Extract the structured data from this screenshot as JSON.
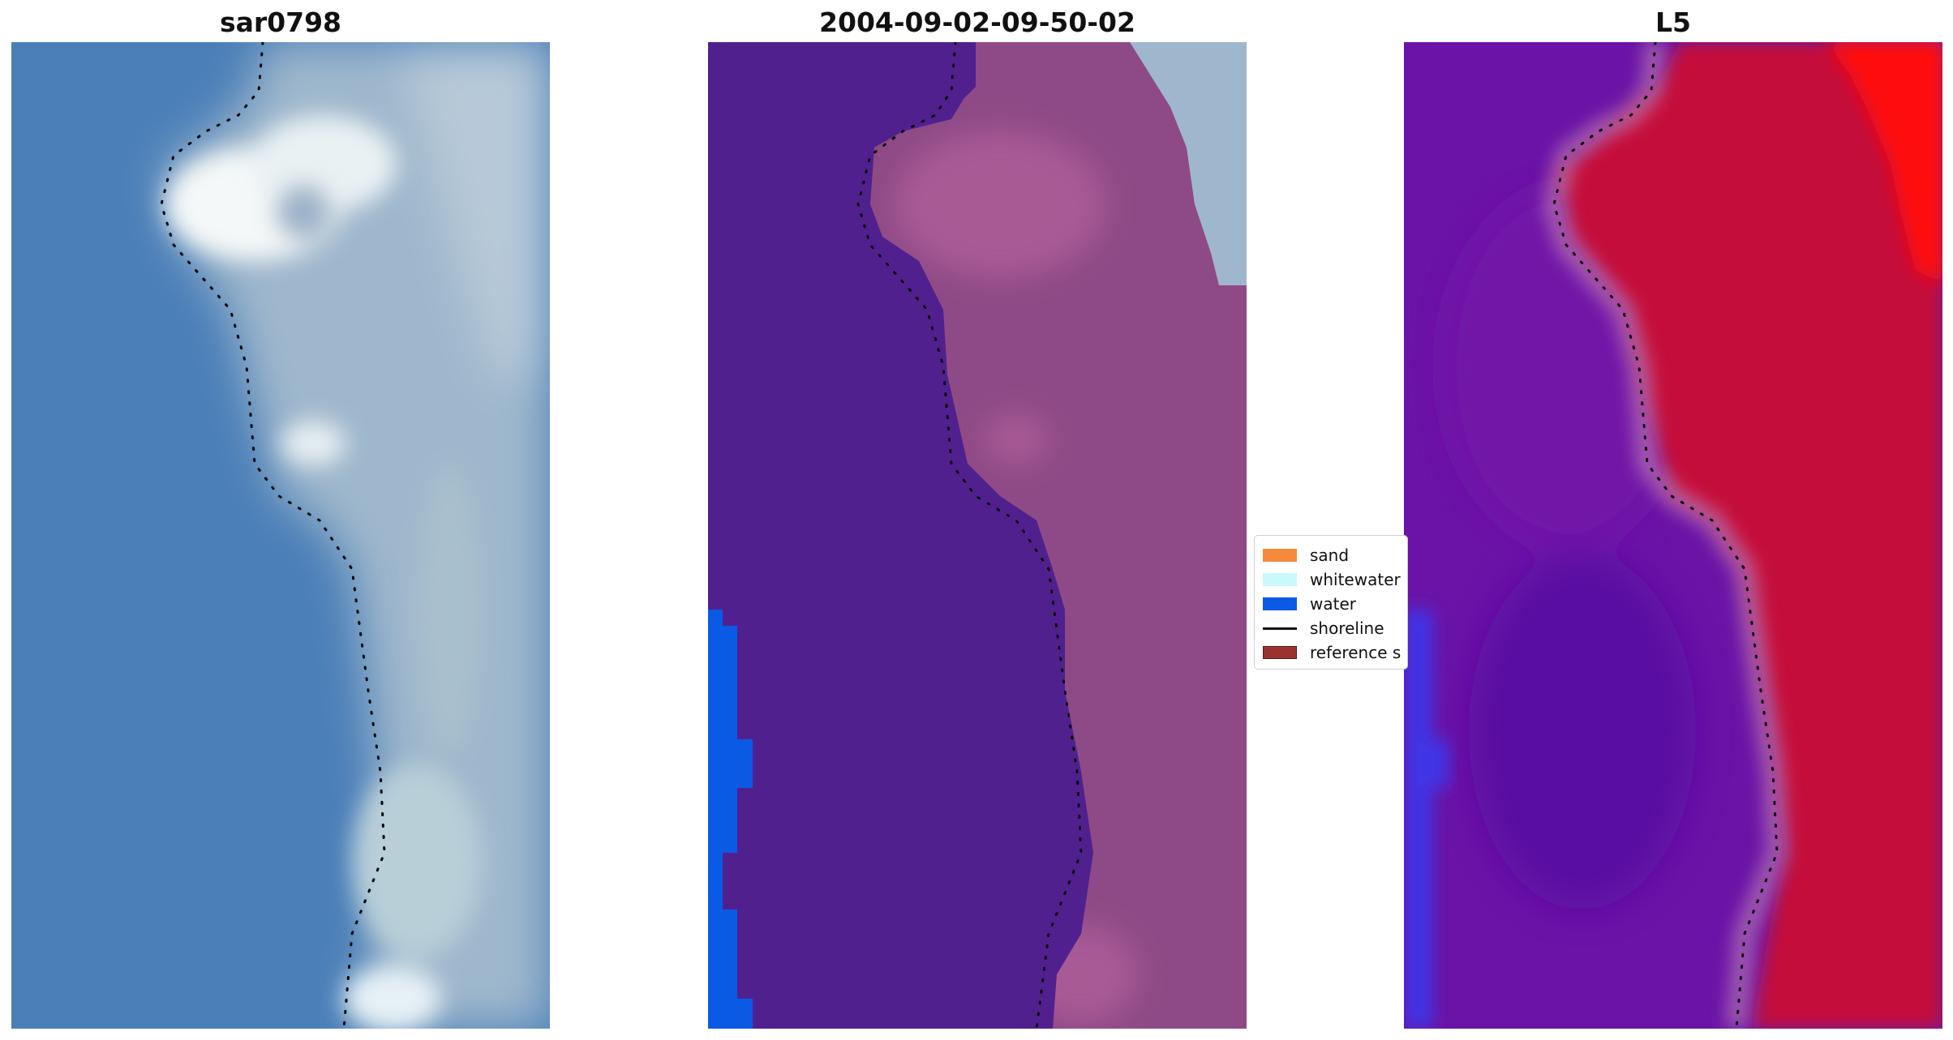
{
  "panels": [
    {
      "title": "sar0798"
    },
    {
      "title": "2004-09-02-09-50-02"
    },
    {
      "title": "L5"
    }
  ],
  "legend": {
    "items": [
      {
        "label": "sand",
        "color": "#f58a3c"
      },
      {
        "label": "whitewater",
        "color": "#c8fafa"
      },
      {
        "label": "water",
        "color": "#0a5ae6"
      },
      {
        "label": "shoreline",
        "color": "#111111"
      },
      {
        "label": "reference s",
        "color": "#9b3232"
      }
    ]
  },
  "colors": {
    "ocean_rgb": "#4a7fb8",
    "foam_rgb": "#e8f2f4",
    "land_rgb": "#9fb7cc",
    "classified_water_overlay": "#51208f",
    "classified_land": "#8e4a86",
    "classified_water_edge": "#0a5ae6",
    "index_low": "#6a13a6",
    "index_mid": "#c4103a",
    "index_high": "#ff1010",
    "shoreline_dots": "#000000"
  }
}
